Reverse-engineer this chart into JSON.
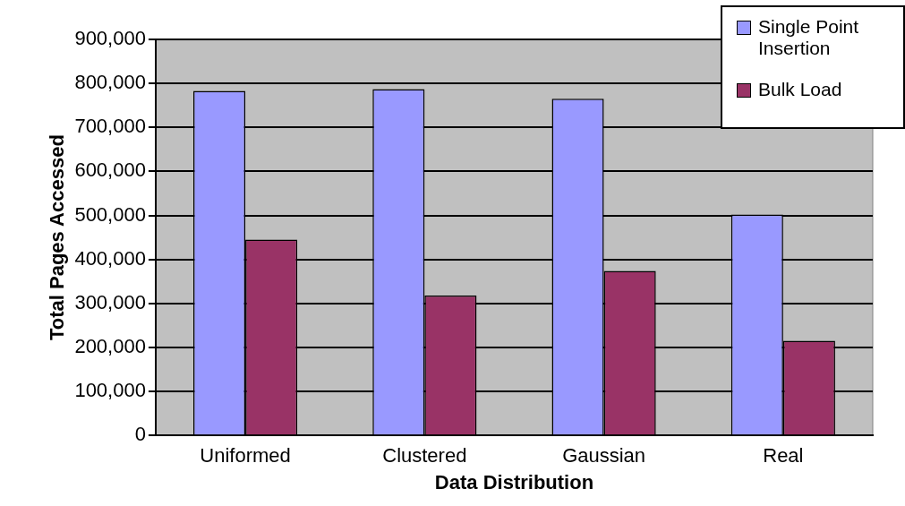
{
  "chart_data": {
    "type": "bar",
    "xlabel": "Data Distribution",
    "ylabel": "Total Pages Accessed",
    "categories": [
      "Uniformed",
      "Clustered",
      "Gaussian",
      "Real"
    ],
    "series": [
      {
        "name": "Single Point Insertion",
        "color": "#9999ff",
        "values": [
          783000,
          787000,
          765000,
          502000
        ]
      },
      {
        "name": "Bulk Load",
        "color": "#993366",
        "values": [
          445000,
          318000,
          374000,
          215000
        ]
      }
    ],
    "ylim": [
      0,
      900000
    ],
    "yticks": [
      0,
      {
        "value": 100000,
        "label": "100,000"
      },
      {
        "value": 200000,
        "label": "200,000"
      },
      {
        "value": 300000,
        "label": "300,000"
      },
      {
        "value": 400000,
        "label": "400,000"
      },
      {
        "value": 500000,
        "label": "500,000"
      },
      {
        "value": 600000,
        "label": "600,000"
      },
      {
        "value": 700000,
        "label": "700,000"
      },
      {
        "value": 800000,
        "label": "800,000"
      },
      {
        "value": 900000,
        "label": "900,000"
      }
    ],
    "grid": "y",
    "legend": "top right"
  }
}
